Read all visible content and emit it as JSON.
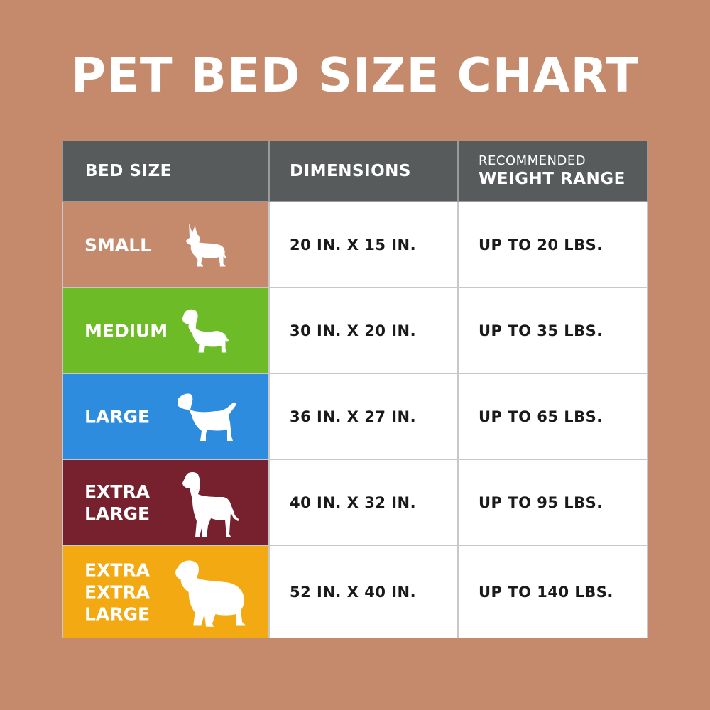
{
  "colors": {
    "background": "#c58a6c",
    "header": "#575b5c",
    "small": "#c58a6c",
    "medium": "#6dbb26",
    "large": "#2e8cdf",
    "extra_large": "#76212d",
    "extra_extra_large": "#f3a911"
  },
  "title": "PET BED SIZE CHART",
  "header": {
    "bed_size": "BED SIZE",
    "dimensions": "DIMENSIONS",
    "weight_small": "RECOMMENDED",
    "weight_big": "WEIGHT RANGE"
  },
  "rows": [
    {
      "size": "SMALL",
      "dimensions": "20 IN. X 15 IN.",
      "weight": "UP TO 20 LBS.",
      "icon": "small-dog-icon"
    },
    {
      "size": "MEDIUM",
      "dimensions": "30 IN. X 20 IN.",
      "weight": "UP TO 35 LBS.",
      "icon": "medium-dog-icon"
    },
    {
      "size": "LARGE",
      "dimensions": "36 IN. X 27 IN.",
      "weight": "UP TO 65 LBS.",
      "icon": "large-dog-icon"
    },
    {
      "size": "EXTRA\nLARGE",
      "dimensions": "40 IN. X 32 IN.",
      "weight": "UP TO 95 LBS.",
      "icon": "great-dane-icon"
    },
    {
      "size": "EXTRA\nEXTRA\nLARGE",
      "dimensions": "52 IN. X 40 IN.",
      "weight": "UP TO 140 LBS.",
      "icon": "newfoundland-dog-icon"
    }
  ]
}
